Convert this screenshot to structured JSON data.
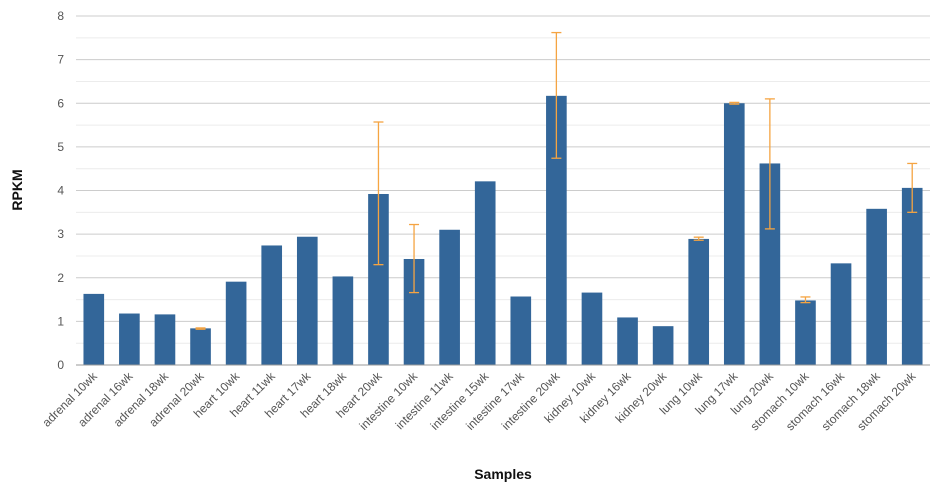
{
  "chart_data": {
    "type": "bar",
    "title": "",
    "xlabel": "Samples",
    "ylabel": "RPKM",
    "ylim": [
      0,
      8
    ],
    "yticks": [
      0,
      1,
      2,
      3,
      4,
      5,
      6,
      7,
      8
    ],
    "grid": "major and minor horizontal",
    "legend": "none",
    "colors": {
      "bar": "#336699",
      "error_bar": "#f5a442",
      "grid": "#d9d9d9",
      "axis": "#999999"
    },
    "categories": [
      "adrenal 10wk",
      "adrenal 16wk",
      "adrenal 18wk",
      "adrenal 20wk",
      "heart 10wk",
      "heart 11wk",
      "heart 17wk",
      "heart 18wk",
      "heart 20wk",
      "intestine 10wk",
      "intestine 11wk",
      "intestine 15wk",
      "intestine 17wk",
      "intestine 20wk",
      "kidney 10wk",
      "kidney 16wk",
      "kidney 20wk",
      "lung 10wk",
      "lung 17wk",
      "lung 20wk",
      "stomach 10wk",
      "stomach 16wk",
      "stomach 18wk",
      "stomach 20wk"
    ],
    "values": [
      1.63,
      1.18,
      1.16,
      0.84,
      1.91,
      2.74,
      2.94,
      2.03,
      3.92,
      2.43,
      3.1,
      4.21,
      1.57,
      6.17,
      1.66,
      1.09,
      0.89,
      2.89,
      6.0,
      4.62,
      1.48,
      2.33,
      3.58,
      4.06
    ],
    "error_bars": [
      null,
      null,
      null,
      [
        0.82,
        0.85
      ],
      null,
      null,
      null,
      null,
      [
        2.3,
        5.57
      ],
      [
        1.66,
        3.22
      ],
      null,
      null,
      null,
      [
        4.74,
        7.62
      ],
      null,
      null,
      null,
      [
        2.86,
        2.93
      ],
      [
        5.98,
        6.02
      ],
      [
        3.12,
        6.1
      ],
      [
        1.43,
        1.56
      ],
      null,
      null,
      [
        3.5,
        4.62
      ]
    ]
  }
}
